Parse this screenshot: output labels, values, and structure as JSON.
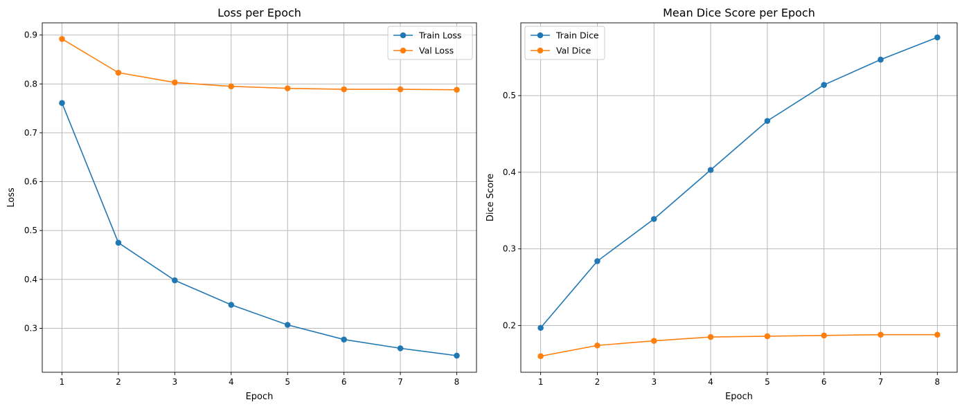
{
  "chart_data": [
    {
      "type": "line",
      "title": "Loss per Epoch",
      "xlabel": "Epoch",
      "ylabel": "Loss",
      "x": [
        1,
        2,
        3,
        4,
        5,
        6,
        7,
        8
      ],
      "xlim": [
        0.65,
        8.35
      ],
      "ylim": [
        0.21,
        0.925
      ],
      "yticks": [
        0.3,
        0.4,
        0.5,
        0.6,
        0.7,
        0.8,
        0.9
      ],
      "grid": true,
      "legend_position": "upper right",
      "series": [
        {
          "name": "Train Loss",
          "color": "#1f77b4",
          "values": [
            0.761,
            0.475,
            0.398,
            0.348,
            0.307,
            0.277,
            0.259,
            0.244
          ]
        },
        {
          "name": "Val Loss",
          "color": "#ff7f0e",
          "values": [
            0.892,
            0.823,
            0.803,
            0.795,
            0.791,
            0.789,
            0.789,
            0.788
          ]
        }
      ]
    },
    {
      "type": "line",
      "title": "Mean Dice Score per Epoch",
      "xlabel": "Epoch",
      "ylabel": "Dice Score",
      "x": [
        1,
        2,
        3,
        4,
        5,
        6,
        7,
        8
      ],
      "xlim": [
        0.65,
        8.35
      ],
      "ylim": [
        0.139,
        0.595
      ],
      "yticks": [
        0.2,
        0.3,
        0.4,
        0.5
      ],
      "grid": true,
      "legend_position": "upper left",
      "series": [
        {
          "name": "Train Dice",
          "color": "#1f77b4",
          "values": [
            0.197,
            0.284,
            0.339,
            0.403,
            0.467,
            0.514,
            0.547,
            0.576
          ]
        },
        {
          "name": "Val Dice",
          "color": "#ff7f0e",
          "values": [
            0.16,
            0.174,
            0.18,
            0.185,
            0.186,
            0.187,
            0.188,
            0.188
          ]
        }
      ]
    }
  ]
}
